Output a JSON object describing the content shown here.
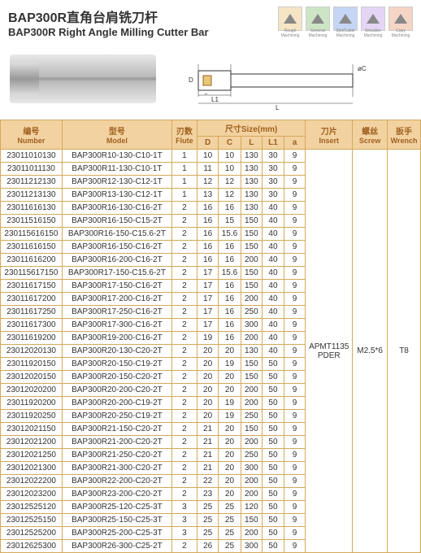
{
  "header": {
    "title_cn": "BAP300R直角台肩铣刀杆",
    "title_en": "BAP300R Right Angle Milling Cutter Bar"
  },
  "process_icons": [
    {
      "color": "#f5e5c5",
      "shape": "wave",
      "label": "Rough Machining"
    },
    {
      "color": "#cde5c5",
      "shape": "tri",
      "label": "General Machining"
    },
    {
      "color": "#c5d5f5",
      "shape": "tri2",
      "label": "Slot/Cable Machining"
    },
    {
      "color": "#e5d5f5",
      "shape": "tri3",
      "label": "Shoulder Machining"
    },
    {
      "color": "#f5d5c5",
      "shape": "tri4",
      "label": "Copy Machining"
    }
  ],
  "diagram_labels": {
    "D": "D",
    "C": "øC",
    "L1": "L1",
    "L": "L",
    "l": "l"
  },
  "table": {
    "headers": {
      "number_cn": "编号",
      "number_en": "Number",
      "model_cn": "型号",
      "model_en": "Model",
      "flute_cn": "刃数",
      "flute_en": "Flute",
      "size_cn": "尺寸Size(mm)",
      "dims": [
        "D",
        "C",
        "L",
        "L1",
        "a"
      ],
      "insert_cn": "刀片",
      "insert_en": "Insert",
      "screw_cn": "螺丝",
      "screw_en": "Screw",
      "wrench_cn": "扳手",
      "wrench_en": "Wrench"
    },
    "insert_value": "APMT1135 PDER",
    "screw_value": "M2.5*6",
    "wrench_value": "T8",
    "rows": [
      {
        "n": "23011010130",
        "m": "BAP300R10-130-C10-1T",
        "f": 1,
        "D": 10,
        "C": 10,
        "L": 130,
        "L1": 30,
        "a": 9
      },
      {
        "n": "23011011130",
        "m": "BAP300R11-130-C10-1T",
        "f": 1,
        "D": 11,
        "C": 10,
        "L": 130,
        "L1": 30,
        "a": 9
      },
      {
        "n": "23011212130",
        "m": "BAP300R12-130-C12-1T",
        "f": 1,
        "D": 12,
        "C": 12,
        "L": 130,
        "L1": 30,
        "a": 9
      },
      {
        "n": "23011213130",
        "m": "BAP300R13-130-C12-1T",
        "f": 1,
        "D": 13,
        "C": 12,
        "L": 130,
        "L1": 30,
        "a": 9
      },
      {
        "n": "23011616130",
        "m": "BAP300R16-130-C16-2T",
        "f": 2,
        "D": 16,
        "C": 16,
        "L": 130,
        "L1": 40,
        "a": 9
      },
      {
        "n": "23011516150",
        "m": "BAP300R16-150-C15-2T",
        "f": 2,
        "D": 16,
        "C": 15,
        "L": 150,
        "L1": 40,
        "a": 9
      },
      {
        "n": "230115616150",
        "m": "BAP300R16-150-C15.6-2T",
        "f": 2,
        "D": 16,
        "C": 15.6,
        "L": 150,
        "L1": 40,
        "a": 9
      },
      {
        "n": "23011616150",
        "m": "BAP300R16-150-C16-2T",
        "f": 2,
        "D": 16,
        "C": 16,
        "L": 150,
        "L1": 40,
        "a": 9
      },
      {
        "n": "23011616200",
        "m": "BAP300R16-200-C16-2T",
        "f": 2,
        "D": 16,
        "C": 16,
        "L": 200,
        "L1": 40,
        "a": 9
      },
      {
        "n": "230115617150",
        "m": "BAP300R17-150-C15.6-2T",
        "f": 2,
        "D": 17,
        "C": 15.6,
        "L": 150,
        "L1": 40,
        "a": 9
      },
      {
        "n": "23011617150",
        "m": "BAP300R17-150-C16-2T",
        "f": 2,
        "D": 17,
        "C": 16,
        "L": 150,
        "L1": 40,
        "a": 9
      },
      {
        "n": "23011617200",
        "m": "BAP300R17-200-C16-2T",
        "f": 2,
        "D": 17,
        "C": 16,
        "L": 200,
        "L1": 40,
        "a": 9
      },
      {
        "n": "23011617250",
        "m": "BAP300R17-250-C16-2T",
        "f": 2,
        "D": 17,
        "C": 16,
        "L": 250,
        "L1": 40,
        "a": 9
      },
      {
        "n": "23011617300",
        "m": "BAP300R17-300-C16-2T",
        "f": 2,
        "D": 17,
        "C": 16,
        "L": 300,
        "L1": 40,
        "a": 9
      },
      {
        "n": "23011619200",
        "m": "BAP300R19-200-C16-2T",
        "f": 2,
        "D": 19,
        "C": 16,
        "L": 200,
        "L1": 40,
        "a": 9
      },
      {
        "n": "23012020130",
        "m": "BAP300R20-130-C20-2T",
        "f": 2,
        "D": 20,
        "C": 20,
        "L": 130,
        "L1": 40,
        "a": 9
      },
      {
        "n": "23011920150",
        "m": "BAP300R20-150-C19-2T",
        "f": 2,
        "D": 20,
        "C": 19,
        "L": 150,
        "L1": 50,
        "a": 9
      },
      {
        "n": "23012020150",
        "m": "BAP300R20-150-C20-2T",
        "f": 2,
        "D": 20,
        "C": 20,
        "L": 150,
        "L1": 50,
        "a": 9
      },
      {
        "n": "23012020200",
        "m": "BAP300R20-200-C20-2T",
        "f": 2,
        "D": 20,
        "C": 20,
        "L": 200,
        "L1": 50,
        "a": 9
      },
      {
        "n": "23011920200",
        "m": "BAP300R20-200-C19-2T",
        "f": 2,
        "D": 20,
        "C": 19,
        "L": 200,
        "L1": 50,
        "a": 9
      },
      {
        "n": "23011920250",
        "m": "BAP300R20-250-C19-2T",
        "f": 2,
        "D": 20,
        "C": 19,
        "L": 250,
        "L1": 50,
        "a": 9
      },
      {
        "n": "23012021150",
        "m": "BAP300R21-150-C20-2T",
        "f": 2,
        "D": 21,
        "C": 20,
        "L": 150,
        "L1": 50,
        "a": 9
      },
      {
        "n": "23012021200",
        "m": "BAP300R21-200-C20-2T",
        "f": 2,
        "D": 21,
        "C": 20,
        "L": 200,
        "L1": 50,
        "a": 9
      },
      {
        "n": "23012021250",
        "m": "BAP300R21-250-C20-2T",
        "f": 2,
        "D": 21,
        "C": 20,
        "L": 250,
        "L1": 50,
        "a": 9
      },
      {
        "n": "23012021300",
        "m": "BAP300R21-300-C20-2T",
        "f": 2,
        "D": 21,
        "C": 20,
        "L": 300,
        "L1": 50,
        "a": 9
      },
      {
        "n": "23012022200",
        "m": "BAP300R22-200-C20-2T",
        "f": 2,
        "D": 22,
        "C": 20,
        "L": 200,
        "L1": 50,
        "a": 9
      },
      {
        "n": "23012023200",
        "m": "BAP300R23-200-C20-2T",
        "f": 2,
        "D": 23,
        "C": 20,
        "L": 200,
        "L1": 50,
        "a": 9
      },
      {
        "n": "23012525120",
        "m": "BAP300R25-120-C25-3T",
        "f": 3,
        "D": 25,
        "C": 25,
        "L": 120,
        "L1": 50,
        "a": 9
      },
      {
        "n": "23012525150",
        "m": "BAP300R25-150-C25-3T",
        "f": 3,
        "D": 25,
        "C": 25,
        "L": 150,
        "L1": 50,
        "a": 9
      },
      {
        "n": "23012525200",
        "m": "BAP300R25-200-C25-3T",
        "f": 3,
        "D": 25,
        "C": 25,
        "L": 200,
        "L1": 50,
        "a": 9
      },
      {
        "n": "23012625300",
        "m": "BAP300R26-300-C25-2T",
        "f": 2,
        "D": 26,
        "C": 25,
        "L": 300,
        "L1": 50,
        "a": 9
      }
    ]
  }
}
